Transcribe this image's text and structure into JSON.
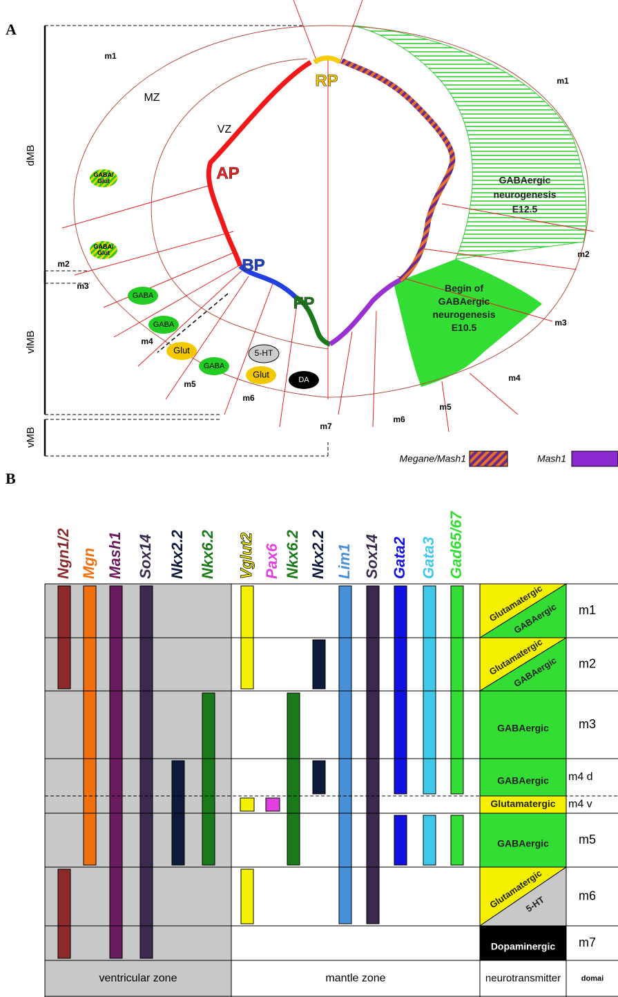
{
  "panel_a": {
    "label": "A",
    "brackets": [
      "dMB",
      "vlMB",
      "vMB"
    ],
    "zones": [
      "MZ",
      "VZ"
    ],
    "plates": [
      "RP",
      "AP",
      "BP",
      "FP"
    ],
    "domains_left": [
      "m1",
      "m2",
      "m3",
      "m4",
      "m5",
      "m6",
      "m7"
    ],
    "domains_right": [
      "m1",
      "m2",
      "m3",
      "m4",
      "m5",
      "m6"
    ],
    "cell_types": [
      [
        "GABA/",
        "Glut"
      ],
      [
        "GABA/",
        "Glut"
      ],
      [
        "GABA"
      ],
      [
        "GABA"
      ],
      [
        "Glut"
      ],
      [
        "GABA"
      ],
      [
        "5-HT"
      ],
      [
        "Glut"
      ],
      [
        "DA"
      ]
    ],
    "neurogenesis": [
      [
        "GABAergic",
        "neurogenesis",
        "E12.5"
      ],
      [
        "Begin of",
        "GABAergic",
        "neurogenesis",
        "E10.5"
      ]
    ],
    "legend": [
      "Megane/Mash1",
      "Mash1"
    ]
  },
  "panel_b": {
    "label": "B",
    "genes": [
      {
        "name": "Ngn1/2",
        "color": "#8b2a2a"
      },
      {
        "name": "Mgn",
        "color": "#f07010"
      },
      {
        "name": "Mash1",
        "color": "#6a1a5e"
      },
      {
        "name": "Sox14",
        "color": "#3a2a4e"
      },
      {
        "name": "Nkx2.2",
        "color": "#0d1a3a"
      },
      {
        "name": "Nkx6.2",
        "color": "#1a7a1a"
      },
      {
        "name": "Vglut2",
        "color": "#f4f000"
      },
      {
        "name": "Pax6",
        "color": "#e040e0"
      },
      {
        "name": "Nkx6.2",
        "color": "#1a7a1a"
      },
      {
        "name": "Nkx2.2",
        "color": "#0d1a3a"
      },
      {
        "name": "Lim1",
        "color": "#4a90d9"
      },
      {
        "name": "Sox14",
        "color": "#3a2a4e"
      },
      {
        "name": "Gata2",
        "color": "#1010e0"
      },
      {
        "name": "Gata3",
        "color": "#40c8e8"
      },
      {
        "name": "Gad65/67",
        "color": "#33dd33"
      }
    ],
    "rows": [
      {
        "domain": "m1",
        "neurotransmitter": [
          "Glutamatergic",
          "GABAergic"
        ]
      },
      {
        "domain": "m2",
        "neurotransmitter": [
          "Glutamatergic",
          "GABAergic"
        ]
      },
      {
        "domain": "m3",
        "neurotransmitter": [
          "GABAergic"
        ]
      },
      {
        "domain": "m4 d",
        "neurotransmitter": [
          "GABAergic"
        ]
      },
      {
        "domain": "m4 v",
        "neurotransmitter": [
          "Glutamatergic"
        ]
      },
      {
        "domain": "m5",
        "neurotransmitter": [
          "GABAergic"
        ]
      },
      {
        "domain": "m6",
        "neurotransmitter": [
          "Glutamatergic",
          "5-HT"
        ]
      },
      {
        "domain": "m7",
        "neurotransmitter": [
          "Dopaminergic"
        ]
      }
    ],
    "footer": [
      "ventricular zone",
      "mantle zone",
      "neurotransmitter",
      "domai"
    ]
  }
}
